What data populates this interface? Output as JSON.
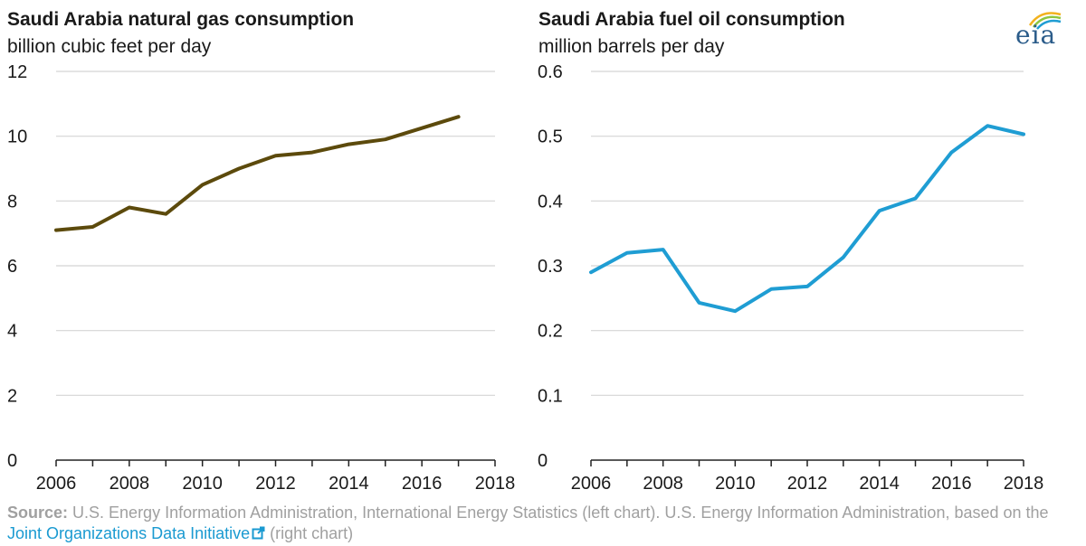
{
  "logo": {
    "text": "eia"
  },
  "source": {
    "label": "Source:",
    "text_before": " U.S. Energy Information Administration, International Energy Statistics (left chart). U.S. Energy Information Administration, based on the ",
    "link_text": "Joint Organizations Data Initiative",
    "text_after": " (right chart)",
    "link_color": "#1a9ad1"
  },
  "chart_data": [
    {
      "type": "line",
      "title": "Saudi Arabia natural gas consumption",
      "ylabel": "billion cubic feet per day",
      "xlabel": "",
      "x": [
        2006,
        2007,
        2008,
        2009,
        2010,
        2011,
        2012,
        2013,
        2014,
        2015,
        2016,
        2017
      ],
      "series": [
        {
          "name": "natural gas consumption",
          "color": "#5c4a0c",
          "values": [
            7.1,
            7.2,
            7.8,
            7.6,
            8.5,
            9.0,
            9.4,
            9.5,
            9.75,
            9.9,
            10.25,
            10.6
          ]
        }
      ],
      "xlim": [
        2006,
        2018
      ],
      "ylim": [
        0,
        12
      ],
      "xticks": [
        "2006",
        "2008",
        "2010",
        "2012",
        "2014",
        "2016",
        "2018"
      ],
      "yticks": [
        "0",
        "2",
        "4",
        "6",
        "8",
        "10",
        "12"
      ],
      "grid": true
    },
    {
      "type": "line",
      "title": "Saudi Arabia fuel oil consumption",
      "ylabel": "million barrels per day",
      "xlabel": "",
      "x": [
        2006,
        2007,
        2008,
        2009,
        2010,
        2011,
        2012,
        2013,
        2014,
        2015,
        2016,
        2017,
        2018
      ],
      "series": [
        {
          "name": "fuel oil consumption",
          "color": "#1f9dd3",
          "values": [
            0.29,
            0.32,
            0.325,
            0.243,
            0.23,
            0.264,
            0.268,
            0.313,
            0.385,
            0.404,
            0.475,
            0.516,
            0.503
          ]
        }
      ],
      "xlim": [
        2006,
        2018
      ],
      "ylim": [
        0,
        0.6
      ],
      "xticks": [
        "2006",
        "2008",
        "2010",
        "2012",
        "2014",
        "2016",
        "2018"
      ],
      "yticks": [
        "0",
        "0.1",
        "0.2",
        "0.3",
        "0.4",
        "0.5",
        "0.6"
      ],
      "grid": true
    }
  ]
}
